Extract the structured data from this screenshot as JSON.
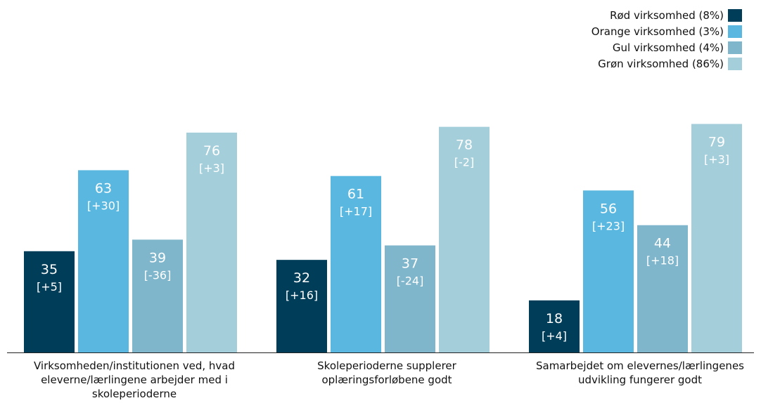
{
  "chart_data": {
    "type": "bar",
    "categories": [
      "Virksomheden/institutionen ved, hvad eleverne/lærlingene arbejder med i skoleperioderne",
      "Skoleperioderne supplerer oplæringsforløbene godt",
      "Samarbejdet om elevernes/lærlingenes udvikling fungerer godt"
    ],
    "series": [
      {
        "name": "Rød virksomhed (8%)",
        "color": "#003d58",
        "values": [
          35,
          32,
          18
        ],
        "labels": [
          "[+5]",
          "[+16]",
          "[+4]"
        ]
      },
      {
        "name": "Orange virksomhed (3%)",
        "color": "#5ab8e0",
        "values": [
          63,
          61,
          56
        ],
        "labels": [
          "[+30]",
          "[+17]",
          "[+23]"
        ]
      },
      {
        "name": "Gul virksomhed (4%)",
        "color": "#7fb6cc",
        "values": [
          39,
          37,
          44
        ],
        "labels": [
          "[-36]",
          "[-24]",
          "[+18]"
        ]
      },
      {
        "name": "Grøn virksomhed (86%)",
        "color": "#a5cedb",
        "values": [
          76,
          78,
          79
        ],
        "labels": [
          "[+3]",
          "[-2]",
          "[+3]"
        ]
      }
    ],
    "ylim": [
      0,
      100
    ],
    "legend": "top-right",
    "grid": false
  }
}
